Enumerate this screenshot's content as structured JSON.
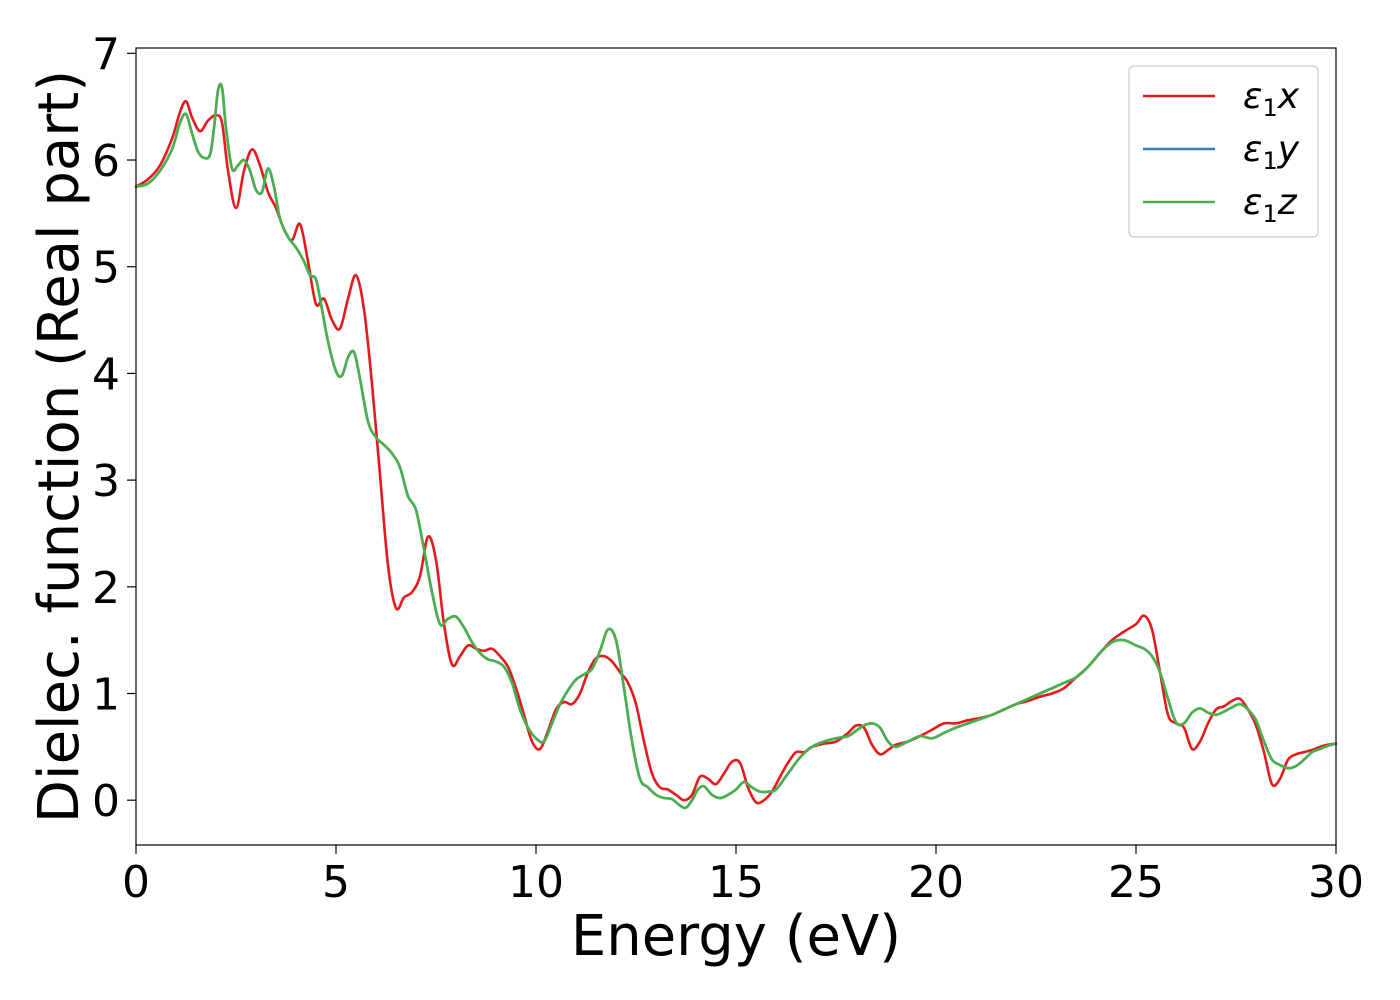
{
  "chart_data": {
    "type": "line",
    "xlabel": "Energy (eV)",
    "ylabel": "Dielec. function (Real part)",
    "xlim": [
      0,
      30
    ],
    "ylim": [
      -0.42,
      7.05
    ],
    "xticks": [
      0,
      5,
      10,
      15,
      20,
      25,
      30
    ],
    "yticks": [
      0,
      1,
      2,
      3,
      4,
      5,
      6,
      7
    ],
    "grid": false,
    "legend_position": "top-right",
    "series": [
      {
        "name": "ε1x",
        "legend_base": "ε",
        "legend_sub": "1",
        "legend_var": "x",
        "color": "#e41a1c",
        "x": [
          0,
          0.3,
          0.6,
          0.9,
          1.1,
          1.25,
          1.4,
          1.6,
          1.8,
          2.0,
          2.15,
          2.3,
          2.5,
          2.7,
          2.9,
          3.1,
          3.3,
          3.5,
          3.7,
          3.9,
          4.1,
          4.3,
          4.5,
          4.7,
          4.9,
          5.1,
          5.3,
          5.5,
          5.7,
          5.9,
          6.1,
          6.3,
          6.5,
          6.7,
          6.9,
          7.1,
          7.3,
          7.5,
          7.7,
          7.9,
          8.1,
          8.3,
          8.5,
          8.7,
          8.9,
          9.1,
          9.3,
          9.5,
          9.7,
          9.9,
          10.1,
          10.3,
          10.5,
          10.7,
          10.9,
          11.1,
          11.3,
          11.5,
          11.7,
          11.9,
          12.1,
          12.3,
          12.5,
          12.7,
          12.9,
          13.1,
          13.3,
          13.5,
          13.7,
          13.9,
          14.1,
          14.3,
          14.5,
          14.7,
          14.9,
          15.1,
          15.3,
          15.5,
          15.7,
          15.9,
          16.1,
          16.3,
          16.5,
          16.7,
          16.9,
          17.2,
          17.5,
          17.8,
          18.0,
          18.2,
          18.4,
          18.6,
          18.8,
          19.0,
          19.3,
          19.6,
          19.9,
          20.2,
          20.5,
          20.8,
          21.1,
          21.4,
          21.7,
          22.0,
          22.3,
          22.6,
          22.9,
          23.2,
          23.5,
          23.8,
          24.1,
          24.4,
          24.7,
          25.0,
          25.2,
          25.4,
          25.6,
          25.8,
          26.0,
          26.2,
          26.4,
          26.6,
          26.8,
          27.0,
          27.2,
          27.4,
          27.6,
          27.8,
          28.0,
          28.2,
          28.4,
          28.6,
          28.8,
          29.0,
          29.2,
          29.4,
          29.6,
          29.8,
          30.0
        ],
        "y": [
          5.75,
          5.82,
          5.95,
          6.2,
          6.45,
          6.55,
          6.4,
          6.27,
          6.37,
          6.42,
          6.35,
          5.9,
          5.55,
          5.9,
          6.1,
          5.95,
          5.7,
          5.55,
          5.35,
          5.25,
          5.4,
          5.05,
          4.65,
          4.7,
          4.5,
          4.42,
          4.7,
          4.92,
          4.6,
          3.9,
          3.05,
          2.2,
          1.8,
          1.9,
          1.95,
          2.1,
          2.47,
          2.25,
          1.65,
          1.27,
          1.35,
          1.45,
          1.42,
          1.4,
          1.42,
          1.35,
          1.25,
          1.05,
          0.8,
          0.55,
          0.48,
          0.65,
          0.85,
          0.92,
          0.9,
          1.0,
          1.2,
          1.33,
          1.35,
          1.3,
          1.2,
          1.1,
          0.9,
          0.55,
          0.25,
          0.12,
          0.1,
          0.05,
          0.0,
          0.05,
          0.22,
          0.2,
          0.15,
          0.25,
          0.36,
          0.35,
          0.12,
          -0.02,
          0.0,
          0.08,
          0.22,
          0.35,
          0.45,
          0.45,
          0.5,
          0.53,
          0.55,
          0.63,
          0.7,
          0.68,
          0.52,
          0.43,
          0.47,
          0.52,
          0.55,
          0.6,
          0.66,
          0.72,
          0.72,
          0.75,
          0.77,
          0.8,
          0.85,
          0.9,
          0.93,
          0.97,
          1.0,
          1.05,
          1.15,
          1.25,
          1.38,
          1.5,
          1.58,
          1.65,
          1.73,
          1.6,
          1.2,
          0.8,
          0.72,
          0.68,
          0.48,
          0.55,
          0.72,
          0.85,
          0.88,
          0.93,
          0.95,
          0.85,
          0.7,
          0.45,
          0.15,
          0.2,
          0.38,
          0.43,
          0.45,
          0.47,
          0.5,
          0.52,
          0.53
        ]
      },
      {
        "name": "ε1y",
        "legend_base": "ε",
        "legend_sub": "1",
        "legend_var": "y",
        "color": "#377eb8",
        "x": [
          0,
          0.3,
          0.6,
          0.9,
          1.1,
          1.25,
          1.4,
          1.55,
          1.7,
          1.85,
          1.95,
          2.05,
          2.15,
          2.25,
          2.4,
          2.55,
          2.7,
          2.85,
          3.0,
          3.15,
          3.3,
          3.45,
          3.6,
          3.8,
          4.0,
          4.2,
          4.35,
          4.5,
          4.65,
          4.8,
          5.0,
          5.15,
          5.3,
          5.45,
          5.6,
          5.8,
          6.0,
          6.2,
          6.4,
          6.6,
          6.8,
          7.0,
          7.2,
          7.4,
          7.6,
          7.8,
          8.0,
          8.2,
          8.4,
          8.6,
          8.8,
          9.0,
          9.2,
          9.4,
          9.6,
          9.8,
          10.0,
          10.2,
          10.4,
          10.6,
          10.8,
          11.0,
          11.2,
          11.4,
          11.6,
          11.8,
          12.0,
          12.2,
          12.4,
          12.6,
          12.8,
          13.0,
          13.2,
          13.4,
          13.6,
          13.75,
          13.9,
          14.05,
          14.2,
          14.4,
          14.6,
          14.8,
          15.0,
          15.2,
          15.4,
          15.6,
          15.8,
          16.0,
          16.3,
          16.6,
          16.9,
          17.2,
          17.5,
          17.8,
          18.0,
          18.2,
          18.4,
          18.6,
          18.8,
          19.0,
          19.3,
          19.6,
          19.9,
          20.2,
          20.5,
          20.8,
          21.1,
          21.4,
          21.7,
          22.0,
          22.3,
          22.6,
          22.9,
          23.2,
          23.5,
          23.8,
          24.1,
          24.4,
          24.7,
          25.0,
          25.2,
          25.4,
          25.6,
          25.8,
          26.0,
          26.2,
          26.4,
          26.6,
          26.8,
          27.0,
          27.2,
          27.4,
          27.6,
          27.8,
          28.0,
          28.2,
          28.4,
          28.6,
          28.8,
          29.0,
          29.2,
          29.4,
          29.6,
          29.8,
          30.0
        ],
        "y": [
          5.75,
          5.78,
          5.9,
          6.1,
          6.35,
          6.43,
          6.25,
          6.08,
          6.02,
          6.05,
          6.3,
          6.65,
          6.68,
          6.3,
          5.92,
          5.95,
          6.0,
          5.9,
          5.72,
          5.7,
          5.92,
          5.75,
          5.45,
          5.28,
          5.18,
          5.05,
          4.92,
          4.88,
          4.6,
          4.3,
          4.02,
          3.98,
          4.15,
          4.2,
          3.95,
          3.55,
          3.4,
          3.33,
          3.25,
          3.12,
          2.85,
          2.72,
          2.35,
          1.95,
          1.65,
          1.7,
          1.72,
          1.62,
          1.48,
          1.38,
          1.32,
          1.3,
          1.25,
          1.1,
          0.85,
          0.68,
          0.58,
          0.55,
          0.72,
          0.9,
          1.03,
          1.13,
          1.18,
          1.23,
          1.4,
          1.6,
          1.5,
          1.05,
          0.55,
          0.2,
          0.12,
          0.05,
          0.02,
          0.01,
          -0.05,
          -0.07,
          0.0,
          0.1,
          0.13,
          0.05,
          0.02,
          0.05,
          0.1,
          0.17,
          0.12,
          0.08,
          0.08,
          0.1,
          0.25,
          0.4,
          0.5,
          0.55,
          0.58,
          0.6,
          0.65,
          0.7,
          0.72,
          0.68,
          0.55,
          0.5,
          0.55,
          0.6,
          0.58,
          0.63,
          0.68,
          0.72,
          0.76,
          0.8,
          0.85,
          0.9,
          0.95,
          1.0,
          1.05,
          1.1,
          1.15,
          1.25,
          1.38,
          1.48,
          1.5,
          1.45,
          1.42,
          1.35,
          1.2,
          0.95,
          0.73,
          0.72,
          0.82,
          0.86,
          0.82,
          0.8,
          0.83,
          0.87,
          0.9,
          0.85,
          0.75,
          0.55,
          0.38,
          0.33,
          0.3,
          0.32,
          0.38,
          0.45,
          0.48,
          0.51,
          0.53
        ]
      },
      {
        "name": "ε1z",
        "legend_base": "ε",
        "legend_sub": "1",
        "legend_var": "z",
        "color": "#4daf4a",
        "x": [
          0,
          0.3,
          0.6,
          0.9,
          1.1,
          1.25,
          1.4,
          1.55,
          1.7,
          1.85,
          1.95,
          2.05,
          2.15,
          2.25,
          2.4,
          2.55,
          2.7,
          2.85,
          3.0,
          3.15,
          3.3,
          3.45,
          3.6,
          3.8,
          4.0,
          4.2,
          4.35,
          4.5,
          4.65,
          4.8,
          5.0,
          5.15,
          5.3,
          5.45,
          5.6,
          5.8,
          6.0,
          6.2,
          6.4,
          6.6,
          6.8,
          7.0,
          7.2,
          7.4,
          7.6,
          7.8,
          8.0,
          8.2,
          8.4,
          8.6,
          8.8,
          9.0,
          9.2,
          9.4,
          9.6,
          9.8,
          10.0,
          10.2,
          10.4,
          10.6,
          10.8,
          11.0,
          11.2,
          11.4,
          11.6,
          11.8,
          12.0,
          12.2,
          12.4,
          12.6,
          12.8,
          13.0,
          13.2,
          13.4,
          13.6,
          13.75,
          13.9,
          14.05,
          14.2,
          14.4,
          14.6,
          14.8,
          15.0,
          15.2,
          15.4,
          15.6,
          15.8,
          16.0,
          16.3,
          16.6,
          16.9,
          17.2,
          17.5,
          17.8,
          18.0,
          18.2,
          18.4,
          18.6,
          18.8,
          19.0,
          19.3,
          19.6,
          19.9,
          20.2,
          20.5,
          20.8,
          21.1,
          21.4,
          21.7,
          22.0,
          22.3,
          22.6,
          22.9,
          23.2,
          23.5,
          23.8,
          24.1,
          24.4,
          24.7,
          25.0,
          25.2,
          25.4,
          25.6,
          25.8,
          26.0,
          26.2,
          26.4,
          26.6,
          26.8,
          27.0,
          27.2,
          27.4,
          27.6,
          27.8,
          28.0,
          28.2,
          28.4,
          28.6,
          28.8,
          29.0,
          29.2,
          29.4,
          29.6,
          29.8,
          30.0
        ],
        "y": [
          5.75,
          5.78,
          5.9,
          6.1,
          6.35,
          6.43,
          6.25,
          6.08,
          6.02,
          6.05,
          6.3,
          6.65,
          6.68,
          6.3,
          5.92,
          5.95,
          6.0,
          5.9,
          5.72,
          5.7,
          5.92,
          5.75,
          5.45,
          5.28,
          5.18,
          5.05,
          4.92,
          4.88,
          4.6,
          4.3,
          4.02,
          3.98,
          4.15,
          4.2,
          3.95,
          3.55,
          3.4,
          3.33,
          3.25,
          3.12,
          2.85,
          2.72,
          2.35,
          1.95,
          1.65,
          1.7,
          1.72,
          1.62,
          1.48,
          1.38,
          1.32,
          1.3,
          1.25,
          1.1,
          0.85,
          0.68,
          0.58,
          0.55,
          0.72,
          0.9,
          1.03,
          1.13,
          1.18,
          1.23,
          1.4,
          1.6,
          1.5,
          1.05,
          0.55,
          0.2,
          0.12,
          0.05,
          0.02,
          0.01,
          -0.05,
          -0.07,
          0.0,
          0.1,
          0.13,
          0.05,
          0.02,
          0.05,
          0.1,
          0.17,
          0.12,
          0.08,
          0.08,
          0.1,
          0.25,
          0.4,
          0.5,
          0.55,
          0.58,
          0.6,
          0.65,
          0.7,
          0.72,
          0.68,
          0.55,
          0.5,
          0.55,
          0.6,
          0.58,
          0.63,
          0.68,
          0.72,
          0.76,
          0.8,
          0.85,
          0.9,
          0.95,
          1.0,
          1.05,
          1.1,
          1.15,
          1.25,
          1.38,
          1.48,
          1.5,
          1.45,
          1.42,
          1.35,
          1.2,
          0.95,
          0.73,
          0.72,
          0.82,
          0.86,
          0.82,
          0.8,
          0.83,
          0.87,
          0.9,
          0.85,
          0.75,
          0.55,
          0.38,
          0.33,
          0.3,
          0.32,
          0.38,
          0.45,
          0.48,
          0.51,
          0.53
        ]
      }
    ]
  }
}
